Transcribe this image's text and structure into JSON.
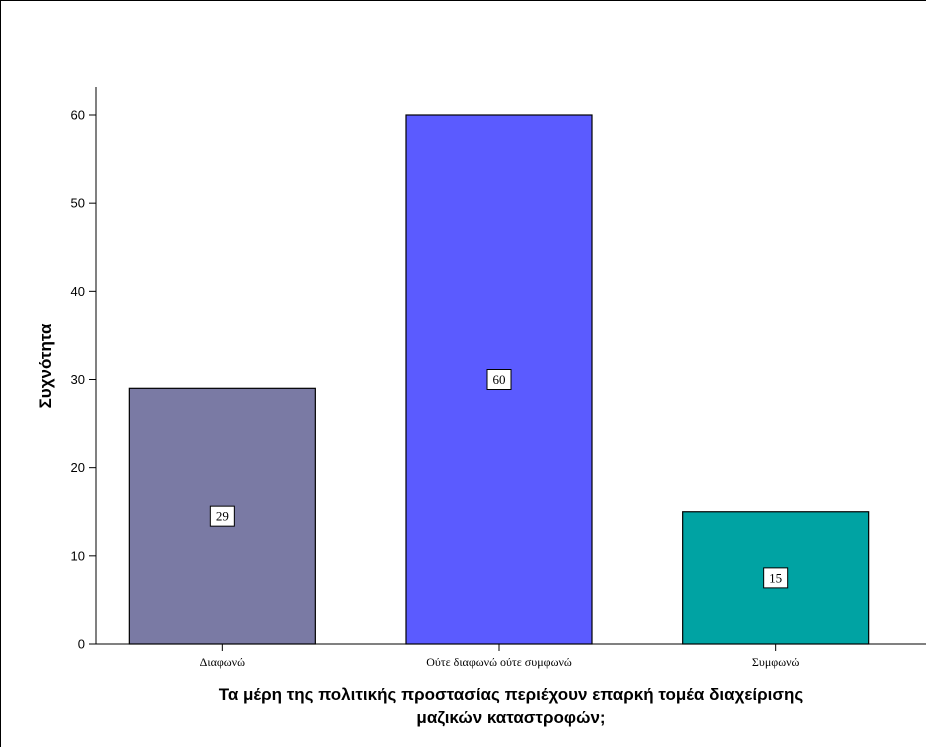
{
  "chart_data": {
    "type": "bar",
    "categories": [
      "Διαφωνώ",
      "Ούτε διαφωνώ ούτε συμφωνώ",
      "Συμφωνώ"
    ],
    "values": [
      29,
      60,
      15
    ],
    "bar_colors": [
      "#7a7aa4",
      "#5b5bff",
      "#00a3a3"
    ],
    "data_labels": [
      "29",
      "60",
      "15"
    ],
    "ylabel": "Συχνότητα",
    "xlabel": [
      "Τα μέρη της πολιτικής προστασίας περιέχουν επαρκή τομέα διαχείρισης",
      "μαζικών καταστροφών;"
    ],
    "ylim": [
      0,
      60
    ],
    "yticks": [
      0,
      10,
      20,
      30,
      40,
      50,
      60
    ],
    "ytick_labels": [
      "0",
      "10",
      "20",
      "30",
      "40",
      "50",
      "60"
    ],
    "grid": false,
    "legend": "none"
  }
}
